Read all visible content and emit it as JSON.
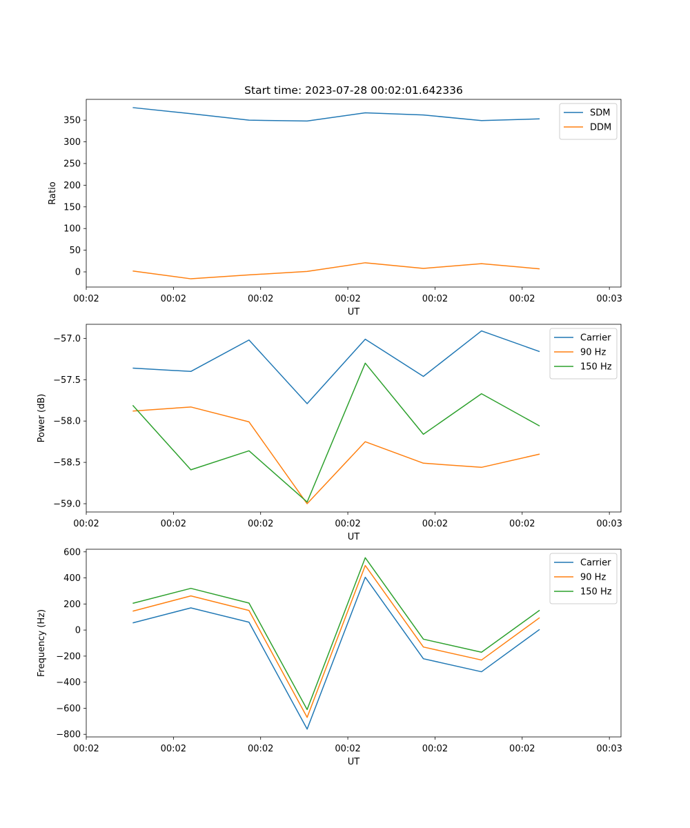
{
  "figure_title": "Start time: 2023-07-28 00:02:01.642336",
  "colors": {
    "c0": "#1f77b4",
    "c1": "#ff7f0e",
    "c2": "#2ca02c"
  },
  "chart_data": [
    {
      "type": "line",
      "title": "Start time: 2023-07-28 00:02:01.642336",
      "xlabel": "UT",
      "ylabel": "Ratio",
      "x": [
        1,
        2,
        3,
        4,
        5,
        6,
        7,
        8
      ],
      "xlim": [
        0.2,
        9.4
      ],
      "xticks": [
        0.2,
        1.7,
        3.2,
        4.7,
        6.2,
        7.7,
        9.2
      ],
      "xtick_labels": [
        "00:02",
        "00:02",
        "00:02",
        "00:02",
        "00:02",
        "00:02",
        "00:03"
      ],
      "ylim": [
        -35,
        398
      ],
      "yticks": [
        0,
        50,
        100,
        150,
        200,
        250,
        300,
        350
      ],
      "ytick_labels": [
        "0",
        "50",
        "100",
        "150",
        "200",
        "250",
        "300",
        "350"
      ],
      "legend": "top-right",
      "series": [
        {
          "name": "SDM",
          "color": "#1f77b4",
          "values": [
            379,
            365,
            350,
            348,
            367,
            362,
            349,
            353
          ]
        },
        {
          "name": "DDM",
          "color": "#ff7f0e",
          "values": [
            2,
            -16,
            -7,
            1,
            21,
            8,
            19,
            7
          ]
        }
      ]
    },
    {
      "type": "line",
      "xlabel": "UT",
      "ylabel": "Power (dB)",
      "x": [
        1,
        2,
        3,
        4,
        5,
        6,
        7,
        8
      ],
      "xlim": [
        0.2,
        9.4
      ],
      "xticks": [
        0.2,
        1.7,
        3.2,
        4.7,
        6.2,
        7.7,
        9.2
      ],
      "xtick_labels": [
        "00:02",
        "00:02",
        "00:02",
        "00:02",
        "00:02",
        "00:02",
        "00:03"
      ],
      "ylim": [
        -59.1,
        -56.83
      ],
      "yticks": [
        -59.0,
        -58.5,
        -58.0,
        -57.5,
        -57.0
      ],
      "ytick_labels": [
        "−59.0",
        "−58.5",
        "−58.0",
        "−57.5",
        "−57.0"
      ],
      "legend": "top-right",
      "series": [
        {
          "name": "Carrier",
          "color": "#1f77b4",
          "values": [
            -57.36,
            -57.4,
            -57.02,
            -57.79,
            -57.01,
            -57.46,
            -56.91,
            -57.16
          ]
        },
        {
          "name": "90 Hz",
          "color": "#ff7f0e",
          "values": [
            -57.88,
            -57.83,
            -58.01,
            -59.0,
            -58.25,
            -58.51,
            -58.56,
            -58.4
          ]
        },
        {
          "name": "150 Hz",
          "color": "#2ca02c",
          "values": [
            -57.81,
            -58.59,
            -58.36,
            -58.98,
            -57.3,
            -58.16,
            -57.67,
            -58.06
          ]
        }
      ]
    },
    {
      "type": "line",
      "xlabel": "UT",
      "ylabel": "Frequency (Hz)",
      "x": [
        1,
        2,
        3,
        4,
        5,
        6,
        7,
        8
      ],
      "xlim": [
        0.2,
        9.4
      ],
      "xticks": [
        0.2,
        1.7,
        3.2,
        4.7,
        6.2,
        7.7,
        9.2
      ],
      "xtick_labels": [
        "00:02",
        "00:02",
        "00:02",
        "00:02",
        "00:02",
        "00:02",
        "00:03"
      ],
      "ylim": [
        -820,
        620
      ],
      "yticks": [
        -800,
        -600,
        -400,
        -200,
        0,
        200,
        400,
        600
      ],
      "ytick_labels": [
        "−800",
        "−600",
        "−400",
        "−200",
        "0",
        "200",
        "400",
        "600"
      ],
      "legend": "top-right",
      "series": [
        {
          "name": "Carrier",
          "color": "#1f77b4",
          "values": [
            55,
            170,
            60,
            -760,
            405,
            -220,
            -320,
            5
          ]
        },
        {
          "name": "90 Hz",
          "color": "#ff7f0e",
          "values": [
            145,
            262,
            150,
            -670,
            495,
            -130,
            -230,
            95
          ]
        },
        {
          "name": "150 Hz",
          "color": "#2ca02c",
          "values": [
            205,
            320,
            207,
            -610,
            555,
            -70,
            -170,
            152
          ]
        }
      ]
    }
  ]
}
